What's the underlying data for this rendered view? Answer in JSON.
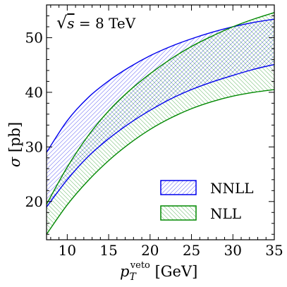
{
  "chart_data": {
    "type": "area",
    "title": "",
    "annotation": {
      "sqrt": "√",
      "s": "s",
      "rest": " = 8 TeV"
    },
    "xlabel": {
      "base": "p",
      "sub": "T",
      "sup": "veto",
      "unit": " [GeV]"
    },
    "ylabel": {
      "symbol": "σ",
      "unit": " [pb]"
    },
    "xlim": [
      7.5,
      35
    ],
    "ylim": [
      13,
      56
    ],
    "xticks": [
      10,
      15,
      20,
      25,
      30,
      35
    ],
    "yticks": [
      20,
      30,
      40,
      50
    ],
    "xtick_labels": [
      "10",
      "15",
      "20",
      "25",
      "30",
      "35"
    ],
    "ytick_labels": [
      "20",
      "30",
      "40",
      "50"
    ],
    "x": [
      7.5,
      10,
      12.5,
      15,
      17.5,
      20,
      22.5,
      25,
      27.5,
      30,
      32.5,
      35
    ],
    "series": [
      {
        "name": "NNLL",
        "color": "#0000ee",
        "hatch": "forward-diagonal",
        "upper": [
          29.0,
          34.8,
          39.0,
          42.1,
          44.6,
          46.7,
          48.4,
          49.8,
          51.0,
          52.0,
          52.8,
          53.4
        ],
        "lower": [
          19.0,
          24.0,
          28.2,
          31.5,
          34.3,
          36.7,
          38.8,
          40.5,
          41.9,
          43.1,
          44.2,
          45.1
        ]
      },
      {
        "name": "NLL",
        "color": "#008800",
        "hatch": "backward-diagonal",
        "upper": [
          19.5,
          26.3,
          32.0,
          36.6,
          40.3,
          43.4,
          46.1,
          48.4,
          50.3,
          52.0,
          53.4,
          54.6
        ],
        "lower": [
          14.0,
          19.4,
          23.8,
          27.5,
          30.6,
          33.2,
          35.3,
          37.0,
          38.3,
          39.3,
          40.0,
          40.5
        ]
      }
    ],
    "legend_position": "bottom-right",
    "grid": false
  }
}
